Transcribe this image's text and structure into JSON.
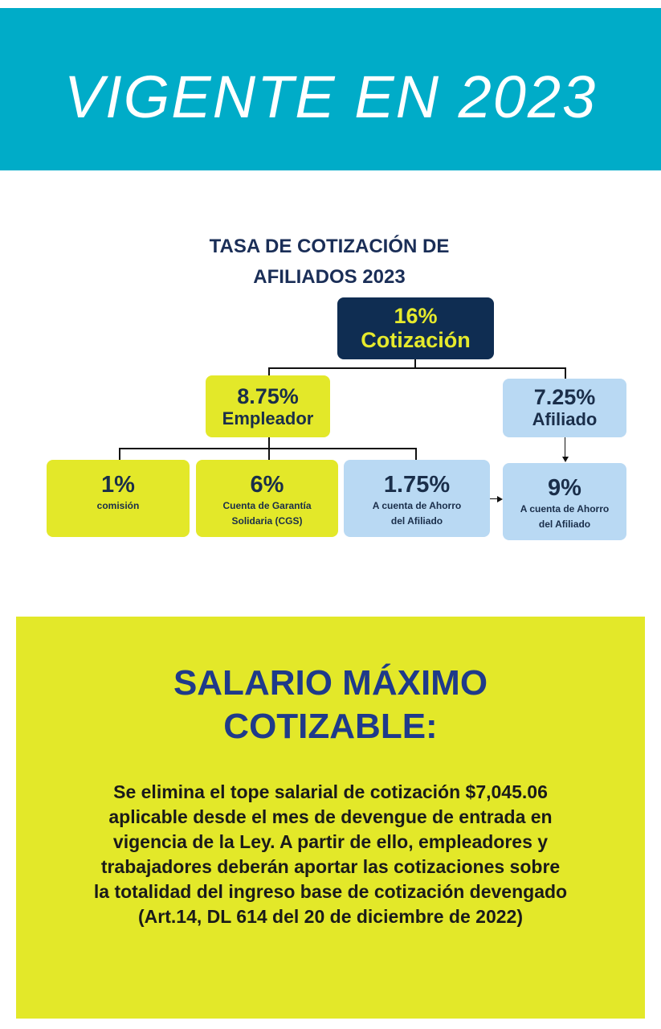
{
  "banner": {
    "title": "VIGENTE EN 2023"
  },
  "org_chart": {
    "title_line1": "TASA DE COTIZACIÓN DE",
    "title_line2": "AFILIADOS 2023",
    "root": {
      "percent": "16%",
      "label": "Cotización"
    },
    "employer": {
      "percent": "8.75%",
      "label": "Empleador"
    },
    "affiliate": {
      "percent": "7.25%",
      "label": "Afiliado"
    },
    "commission": {
      "percent": "1%",
      "label": "comisión"
    },
    "cgs": {
      "percent": "6%",
      "label_line1": "Cuenta de Garantía",
      "label_line2": "Solidaria (CGS)"
    },
    "employer_savings": {
      "percent": "1.75%",
      "label_line1": "A cuenta de Ahorro",
      "label_line2": "del Afiliado"
    },
    "affiliate_savings": {
      "percent": "9%",
      "label_line1": "A cuenta de Ahorro",
      "label_line2": "del Afiliado"
    },
    "colors": {
      "navy": "#0f2d52",
      "lime": "#e3e829",
      "light_blue": "#b9d9f3",
      "teal": "#00acc8"
    }
  },
  "salary_panel": {
    "title_line1": "SALARIO MÁXIMO",
    "title_line2": "COTIZABLE:",
    "body_lines": [
      "Se elimina el tope salarial de cotización $7,045.06",
      "aplicable desde el mes de devengue de entrada en",
      "vigencia de la Ley. A partir de ello, empleadores y",
      "trabajadores deberán aportar las cotizaciones sobre",
      "la totalidad del ingreso base de cotización devengado",
      "(Art.14, DL 614 del 20 de diciembre de 2022)"
    ]
  }
}
